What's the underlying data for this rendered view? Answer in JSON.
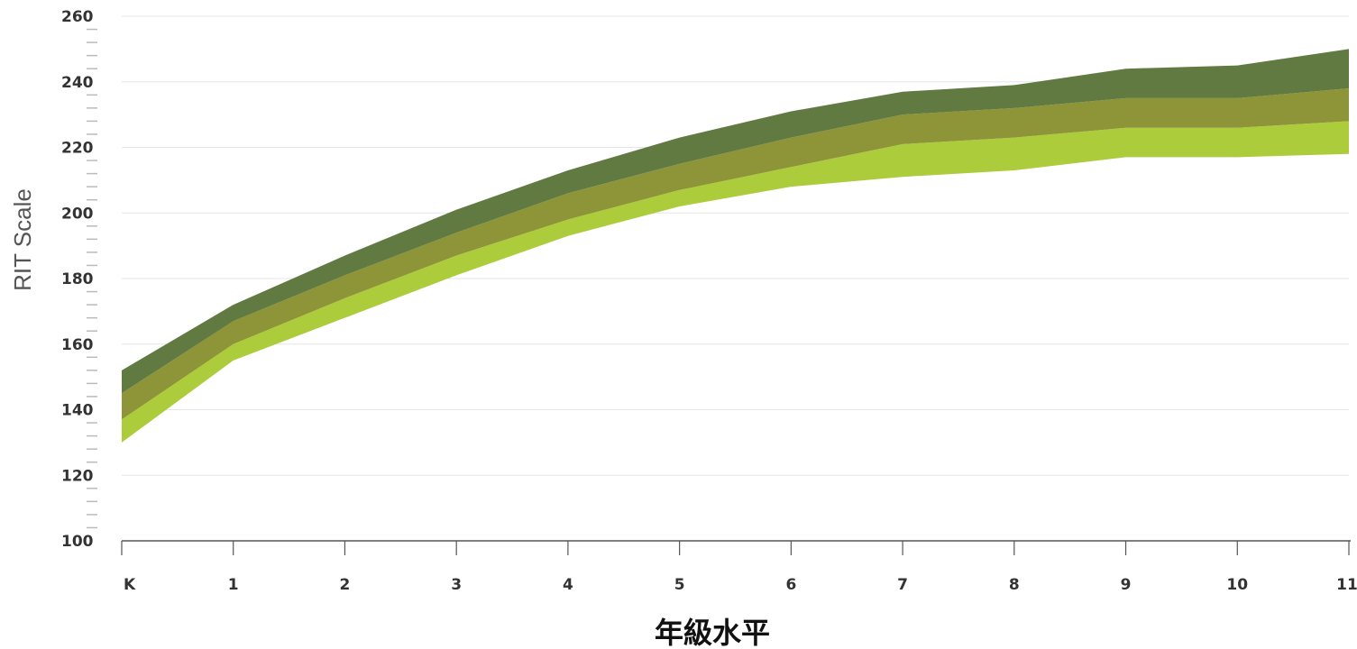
{
  "chart_data": {
    "type": "area",
    "xlabel": "年級水平",
    "ylabel": "RIT Scale",
    "categories": [
      "K",
      "1",
      "2",
      "3",
      "4",
      "5",
      "6",
      "7",
      "8",
      "9",
      "10",
      "11"
    ],
    "ylim": [
      100,
      260
    ],
    "yticks": [
      100,
      120,
      140,
      160,
      180,
      200,
      220,
      240,
      260
    ],
    "grid": true,
    "legend": "none",
    "bands": [
      {
        "lower": [
          130,
          155,
          168,
          181,
          193,
          202,
          208,
          211,
          213,
          217,
          217,
          218
        ],
        "upper": [
          137,
          160,
          174,
          187,
          198,
          207,
          214,
          221,
          223,
          226,
          226,
          228
        ],
        "color": "#adcc3c"
      },
      {
        "lower": [
          137,
          160,
          174,
          187,
          198,
          207,
          214,
          221,
          223,
          226,
          226,
          228
        ],
        "upper": [
          145,
          167,
          181,
          194,
          206,
          215,
          223,
          230,
          232,
          235,
          235,
          238
        ],
        "color": "#8e9438"
      },
      {
        "lower": [
          145,
          167,
          181,
          194,
          206,
          215,
          223,
          230,
          232,
          235,
          235,
          238
        ],
        "upper": [
          152,
          172,
          187,
          201,
          213,
          223,
          231,
          237,
          239,
          244,
          245,
          250
        ],
        "color": "#617a42"
      }
    ],
    "colors": {
      "grid": "#e6e6e6",
      "axis": "#555555",
      "minor_tick": "#bbbbbb"
    }
  }
}
